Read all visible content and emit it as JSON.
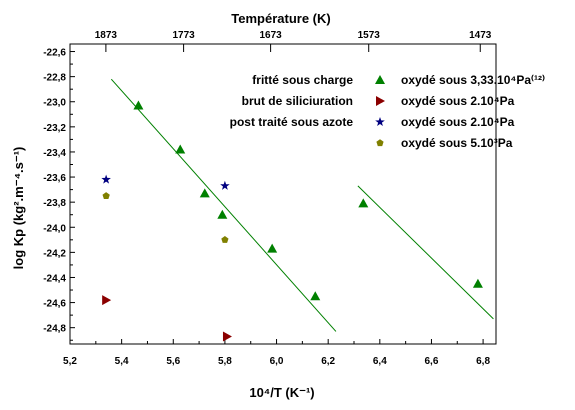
{
  "chart_data": {
    "type": "scatter",
    "xlabel": "10⁴/T (K⁻¹)",
    "ylabel": "log Kp (kg².m⁻⁴.s⁻¹)",
    "top_axis_label": "Température (K)",
    "xlim": [
      5.2,
      6.85
    ],
    "ylim": [
      -24.93,
      -22.54
    ],
    "x_ticks": [
      5.2,
      5.4,
      5.6,
      5.8,
      6.0,
      6.2,
      6.4,
      6.6,
      6.8
    ],
    "x_tick_labels": [
      "5,2",
      "5,4",
      "5,6",
      "5,8",
      "6,0",
      "6,2",
      "6,4",
      "6,6",
      "6,8"
    ],
    "y_ticks": [
      -22.6,
      -22.8,
      -23.0,
      -23.2,
      -23.4,
      -23.6,
      -23.8,
      -24.0,
      -24.2,
      -24.4,
      -24.6,
      -24.8
    ],
    "y_tick_labels": [
      "-22,6",
      "-22,8",
      "-23,0",
      "-23,2",
      "-23,4",
      "-23,6",
      "-23,8",
      "-24,0",
      "-24,2",
      "-24,4",
      "-24,6",
      "-24,8"
    ],
    "top_ticks": [
      {
        "x": 5.339,
        "label": "1873"
      },
      {
        "x": 5.64,
        "label": "1773"
      },
      {
        "x": 5.977,
        "label": "1673"
      },
      {
        "x": 6.357,
        "label": "1573"
      },
      {
        "x": 6.789,
        "label": "1473"
      }
    ],
    "legend_left": [
      "fritté sous charge",
      "brut de siliciuration",
      "post traité sous azote"
    ],
    "series": [
      {
        "name": "oxydé sous 3,33.10⁴Pa⁽¹²⁾",
        "marker": "triangle-up",
        "color": "#008000",
        "points": [
          [
            5.465,
            -23.03
          ],
          [
            5.627,
            -23.38
          ],
          [
            5.722,
            -23.73
          ],
          [
            5.79,
            -23.9
          ],
          [
            5.983,
            -24.17
          ],
          [
            6.15,
            -24.55
          ],
          [
            6.336,
            -23.81
          ],
          [
            6.78,
            -24.45
          ]
        ]
      },
      {
        "name": "oxydé sous 2.10⁴Pa",
        "marker": "triangle-right",
        "color": "#8b0000",
        "points": [
          [
            5.34,
            -24.58
          ],
          [
            5.808,
            -24.87
          ]
        ]
      },
      {
        "name": "oxydé sous 2.10⁴Pa",
        "marker": "star",
        "color": "#000080",
        "points": [
          [
            5.34,
            -23.62
          ],
          [
            5.8,
            -23.67
          ]
        ]
      },
      {
        "name": "oxydé sous 5.10³Pa",
        "marker": "pentagon",
        "color": "#808000",
        "points": [
          [
            5.34,
            -23.75
          ],
          [
            5.8,
            -24.1
          ]
        ]
      }
    ],
    "fit_lines": [
      {
        "x1": 5.36,
        "y1": -22.82,
        "x2": 6.23,
        "y2": -24.83,
        "color": "#008000"
      },
      {
        "x1": 6.315,
        "y1": -23.67,
        "x2": 6.84,
        "y2": -24.73,
        "color": "#008000"
      }
    ]
  }
}
